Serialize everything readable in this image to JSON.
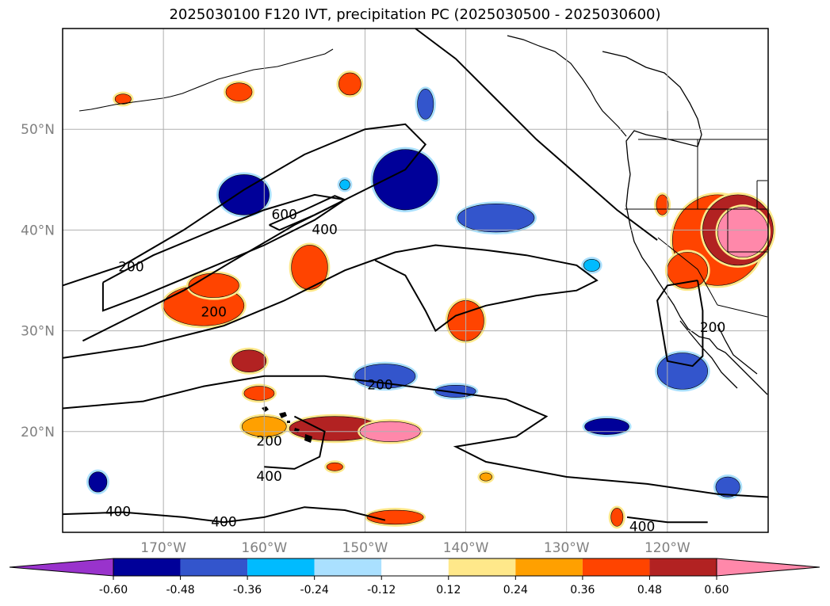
{
  "title": "2025030100 F120 IVT, precipitation PC (2025030500 - 2025030600)",
  "chart_data": {
    "type": "contour-map",
    "title": "2025030100 F120 IVT, precipitation PC (2025030500 - 2025030600)",
    "xlim": [
      -180,
      -110
    ],
    "ylim": [
      10,
      60
    ],
    "x_ticks": [
      {
        "value": -170,
        "label": "170°W"
      },
      {
        "value": -160,
        "label": "160°W"
      },
      {
        "value": -150,
        "label": "150°W"
      },
      {
        "value": -140,
        "label": "140°W"
      },
      {
        "value": -130,
        "label": "130°W"
      },
      {
        "value": -120,
        "label": "120°W"
      }
    ],
    "y_ticks": [
      {
        "value": 20,
        "label": "20°N"
      },
      {
        "value": 30,
        "label": "30°N"
      },
      {
        "value": 40,
        "label": "40°N"
      },
      {
        "value": 50,
        "label": "50°N"
      }
    ],
    "grid": true,
    "colorbar": {
      "placement": "bottom",
      "extend": "both",
      "ticks": [
        "-0.60",
        "-0.48",
        "-0.36",
        "-0.24",
        "-0.12",
        "0.12",
        "0.24",
        "0.36",
        "0.48",
        "0.60"
      ],
      "colors": [
        "#9933cc",
        "#000099",
        "#3355cc",
        "#00bbff",
        "#aae0ff",
        "#ffffff",
        "#ffe88a",
        "#ffa000",
        "#ff4400",
        "#b22222",
        "#ff88aa",
        "#ff88aa"
      ]
    },
    "ivt_contours": [
      {
        "label": "200",
        "points": [
          [
            -180,
            34.5
          ],
          [
            -174,
            36.5
          ],
          [
            -168,
            40
          ],
          [
            -162,
            44
          ],
          [
            -156,
            47.5
          ],
          [
            -150,
            50
          ],
          [
            -146,
            50.5
          ],
          [
            -144,
            48.5
          ],
          [
            -146,
            46
          ],
          [
            -151,
            43.5
          ],
          [
            -157,
            40.5
          ],
          [
            -163,
            37
          ],
          [
            -168,
            34
          ],
          [
            -173,
            31.5
          ],
          [
            -178,
            29
          ]
        ]
      },
      {
        "label": "400",
        "points": [
          [
            -176,
            34.8
          ],
          [
            -171,
            37.5
          ],
          [
            -165,
            40
          ],
          [
            -160,
            42
          ],
          [
            -155,
            43.5
          ],
          [
            -152,
            43
          ],
          [
            -155,
            41
          ],
          [
            -160,
            38.5
          ],
          [
            -166,
            36
          ],
          [
            -172,
            33.5
          ],
          [
            -176,
            32
          ],
          [
            -176,
            34.8
          ]
        ]
      },
      {
        "label": "600",
        "points": [
          [
            -159.5,
            40.5
          ],
          [
            -156,
            42
          ],
          [
            -153,
            43.4
          ],
          [
            -152,
            43
          ],
          [
            -155,
            41.5
          ],
          [
            -158.5,
            40
          ],
          [
            -159.5,
            40.5
          ]
        ]
      },
      {
        "label": "400",
        "points": [
          [
            -180,
            27.3
          ],
          [
            -172,
            28.5
          ],
          [
            -164,
            30.5
          ],
          [
            -158,
            33
          ],
          [
            -152,
            36
          ],
          [
            -147,
            37.8
          ],
          [
            -143,
            38.5
          ],
          [
            -138,
            38
          ],
          [
            -134,
            37.5
          ],
          [
            -129,
            36.5
          ],
          [
            -127,
            35
          ],
          [
            -129,
            34
          ],
          [
            -133,
            33.5
          ],
          [
            -138,
            32.5
          ],
          [
            -141,
            31.5
          ],
          [
            -143,
            30
          ],
          [
            -144,
            32
          ],
          [
            -146,
            35.5
          ],
          [
            -149,
            37
          ]
        ]
      },
      {
        "label": "200",
        "points": [
          [
            -180,
            22.3
          ],
          [
            -172,
            23
          ],
          [
            -166,
            24.5
          ],
          [
            -160,
            25.5
          ],
          [
            -154,
            25.5
          ],
          [
            -148,
            24.8
          ],
          [
            -142,
            24
          ],
          [
            -136,
            23.2
          ],
          [
            -132,
            21.5
          ],
          [
            -135,
            19.5
          ],
          [
            -141,
            18.5
          ],
          [
            -138,
            17
          ],
          [
            -130,
            15.5
          ],
          [
            -122,
            14.8
          ],
          [
            -115,
            13.8
          ],
          [
            -110,
            13.5
          ]
        ]
      },
      {
        "label": "200",
        "points": [
          [
            -157,
            21.5
          ],
          [
            -154,
            20
          ],
          [
            -154.5,
            17.5
          ],
          [
            -157,
            16.3
          ],
          [
            -160,
            16.5
          ]
        ]
      },
      {
        "label": "400",
        "points": [
          [
            -180,
            11.8
          ],
          [
            -174,
            12
          ],
          [
            -168,
            11.5
          ],
          [
            -164,
            11
          ],
          [
            -160,
            11.5
          ],
          [
            -156,
            12.5
          ],
          [
            -152,
            12.2
          ],
          [
            -148,
            11.2
          ]
        ]
      },
      {
        "label": "200",
        "points": [
          [
            -117,
            35
          ],
          [
            -116.5,
            32
          ],
          [
            -116.5,
            27.5
          ],
          [
            -117.5,
            26.5
          ],
          [
            -120,
            27
          ],
          [
            -120.5,
            30
          ],
          [
            -121,
            33
          ],
          [
            -120,
            34.5
          ],
          [
            -117,
            35
          ]
        ]
      },
      {
        "label": "200",
        "points": [
          [
            -145,
            60
          ],
          [
            -141,
            57
          ],
          [
            -137,
            53
          ],
          [
            -133,
            49
          ],
          [
            -129,
            45.5
          ],
          [
            -125,
            42
          ],
          [
            -121,
            39
          ]
        ]
      },
      {
        "label": "400",
        "points": [
          [
            -124,
            11.5
          ],
          [
            -120,
            11
          ],
          [
            -116,
            11
          ]
        ]
      }
    ],
    "ivt_labels": [
      {
        "text": "200",
        "lon": -173.2,
        "lat": 36.3
      },
      {
        "text": "600",
        "lon": -158,
        "lat": 41.5
      },
      {
        "text": "400",
        "lon": -154,
        "lat": 40
      },
      {
        "text": "200",
        "lon": -165,
        "lat": 31.8
      },
      {
        "text": "200",
        "lon": -148.5,
        "lat": 24.6
      },
      {
        "text": "200",
        "lon": -159.5,
        "lat": 19
      },
      {
        "text": "400",
        "lon": -159.5,
        "lat": 15.5
      },
      {
        "text": "400",
        "lon": -174.5,
        "lat": 12
      },
      {
        "text": "400",
        "lon": -164,
        "lat": 11
      },
      {
        "text": "400",
        "lon": -122.5,
        "lat": 10.5
      },
      {
        "text": "200",
        "lon": -115.5,
        "lat": 30.3
      }
    ],
    "precip_pc_anomalies": [
      {
        "lon": -146,
        "lat": 45,
        "rx": 3.2,
        "ry": 3.0,
        "value": -0.48
      },
      {
        "lon": -144,
        "lat": 52.5,
        "rx": 0.8,
        "ry": 1.5,
        "value": -0.36
      },
      {
        "lon": -137,
        "lat": 41.2,
        "rx": 3.8,
        "ry": 1.4,
        "value": -0.36
      },
      {
        "lon": -162,
        "lat": 43.5,
        "rx": 2.5,
        "ry": 2.0,
        "value": -0.48
      },
      {
        "lon": -148,
        "lat": 25.5,
        "rx": 3.0,
        "ry": 1.2,
        "value": -0.36
      },
      {
        "lon": -141,
        "lat": 24,
        "rx": 2.0,
        "ry": 0.6,
        "value": -0.36
      },
      {
        "lon": -126,
        "lat": 20.5,
        "rx": 2.2,
        "ry": 0.8,
        "value": -0.48
      },
      {
        "lon": -118.5,
        "lat": 26,
        "rx": 2.5,
        "ry": 1.8,
        "value": -0.36
      },
      {
        "lon": -114,
        "lat": 14.5,
        "rx": 1.2,
        "ry": 1.0,
        "value": -0.36
      },
      {
        "lon": -176.5,
        "lat": 15,
        "rx": 0.9,
        "ry": 1.0,
        "value": -0.48
      },
      {
        "lon": -127.5,
        "lat": 36.5,
        "rx": 0.8,
        "ry": 0.6,
        "value": -0.24
      },
      {
        "lon": -152,
        "lat": 44.5,
        "rx": 0.5,
        "ry": 0.5,
        "value": -0.24
      },
      {
        "lon": -160,
        "lat": 20.5,
        "rx": 2.2,
        "ry": 1.0,
        "value": 0.24
      },
      {
        "lon": -153,
        "lat": 20.3,
        "rx": 4.5,
        "ry": 1.2,
        "value": 0.48
      },
      {
        "lon": -147.5,
        "lat": 20.0,
        "rx": 3.0,
        "ry": 1.0,
        "value": 0.6
      },
      {
        "lon": -166,
        "lat": 32.5,
        "rx": 4.0,
        "ry": 2.0,
        "value": 0.36
      },
      {
        "lon": -165,
        "lat": 34.5,
        "rx": 2.5,
        "ry": 1.2,
        "value": 0.36
      },
      {
        "lon": -155.5,
        "lat": 36.3,
        "rx": 1.8,
        "ry": 2.2,
        "value": 0.36
      },
      {
        "lon": -140,
        "lat": 31,
        "rx": 1.8,
        "ry": 2.0,
        "value": 0.36
      },
      {
        "lon": -161.5,
        "lat": 27,
        "rx": 1.7,
        "ry": 1.1,
        "value": 0.48
      },
      {
        "lon": -160.5,
        "lat": 23.8,
        "rx": 1.5,
        "ry": 0.7,
        "value": 0.36
      },
      {
        "lon": -151.5,
        "lat": 54.5,
        "rx": 1.1,
        "ry": 1.1,
        "value": 0.36
      },
      {
        "lon": -162.5,
        "lat": 53.7,
        "rx": 1.3,
        "ry": 0.9,
        "value": 0.36
      },
      {
        "lon": -174,
        "lat": 53,
        "rx": 0.8,
        "ry": 0.5,
        "value": 0.36
      },
      {
        "lon": -115,
        "lat": 39,
        "rx": 4.5,
        "ry": 4.5,
        "value": 0.36
      },
      {
        "lon": -113,
        "lat": 40,
        "rx": 3.5,
        "ry": 3.5,
        "value": 0.48
      },
      {
        "lon": -112.5,
        "lat": 39.8,
        "rx": 2.5,
        "ry": 2.5,
        "value": 0.6
      },
      {
        "lon": -118,
        "lat": 36,
        "rx": 2.0,
        "ry": 1.8,
        "value": 0.36
      },
      {
        "lon": -120.5,
        "lat": 42.5,
        "rx": 0.6,
        "ry": 1.0,
        "value": 0.36
      },
      {
        "lon": -125,
        "lat": 11.5,
        "rx": 0.6,
        "ry": 0.9,
        "value": 0.36
      },
      {
        "lon": -147,
        "lat": 11.5,
        "rx": 2.8,
        "ry": 0.7,
        "value": 0.36
      },
      {
        "lon": -138,
        "lat": 15.5,
        "rx": 0.6,
        "ry": 0.4,
        "value": 0.24
      },
      {
        "lon": -153,
        "lat": 16.5,
        "rx": 0.8,
        "ry": 0.4,
        "value": 0.36
      }
    ]
  }
}
